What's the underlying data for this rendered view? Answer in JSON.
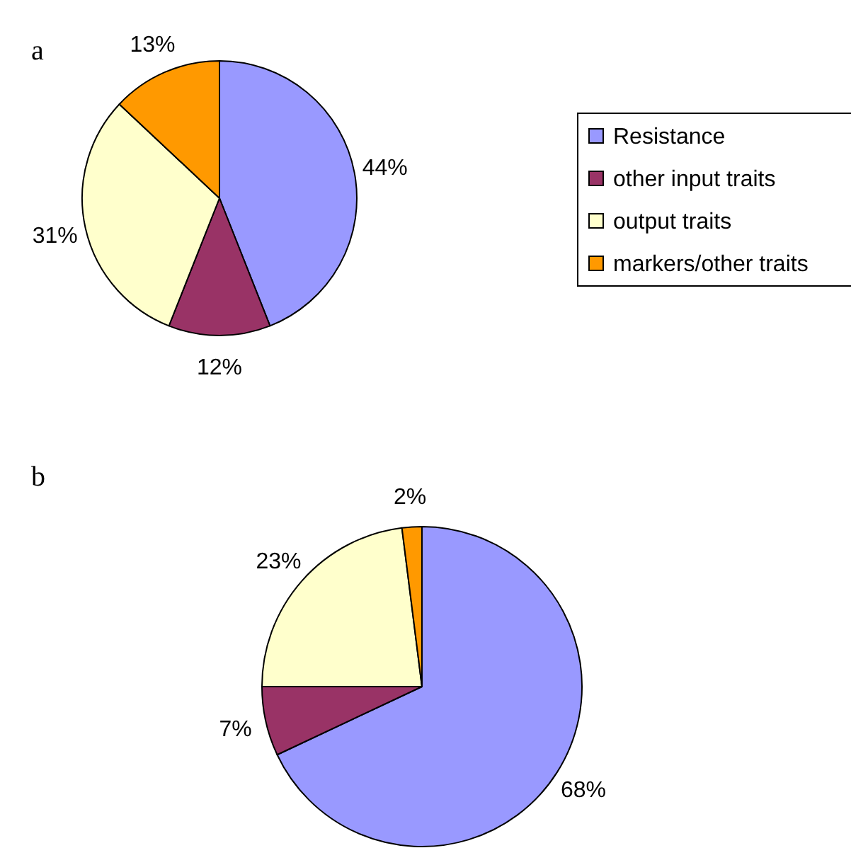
{
  "chart_data": [
    {
      "type": "pie",
      "title": "a",
      "categories": [
        "Resistance",
        "other input traits",
        "output traits",
        "markers/other traits"
      ],
      "values": [
        44,
        12,
        31,
        13
      ],
      "colors": [
        "#9999ff",
        "#993366",
        "#ffffcc",
        "#ff9900"
      ],
      "value_labels": [
        "44%",
        "12%",
        "31%",
        "13%"
      ],
      "legend": "right"
    },
    {
      "type": "pie",
      "title": "b",
      "categories": [
        null,
        null,
        null,
        null
      ],
      "values": [
        68,
        7,
        23,
        2
      ],
      "colors": [
        "#9999ff",
        "#993366",
        "#ffffcc",
        "#ff9900"
      ],
      "value_labels": [
        "68%",
        "7%",
        "23%",
        "2%"
      ],
      "legend": false
    }
  ]
}
